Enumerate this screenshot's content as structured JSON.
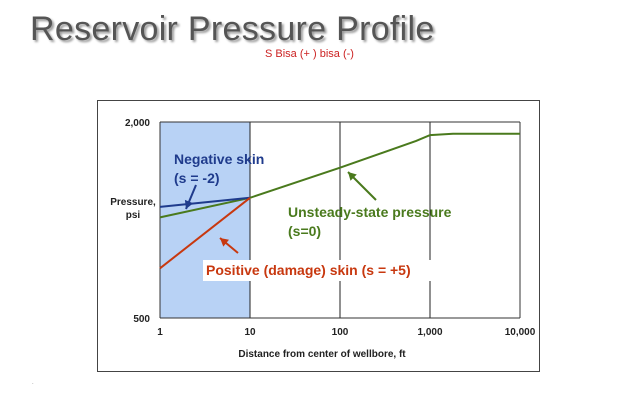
{
  "page": {
    "title": "Reservoir Pressure Profile",
    "note": "S Bisa (+ ) bisa (-)"
  },
  "colors": {
    "shade": "#b8d2f5",
    "negative": "#1f3b8c",
    "unsteady": "#4a7a1d",
    "positive": "#c8380f",
    "axis": "#333333",
    "grid": "#222222"
  },
  "chart_data": {
    "type": "line",
    "title": "",
    "xlabel": "Distance from center of wellbore, ft",
    "ylabel": "Pressure, psi",
    "x_scale": "log",
    "xlim": [
      1,
      10000
    ],
    "ylim": [
      500,
      2000
    ],
    "x_ticks": [
      1,
      10,
      100,
      1000,
      10000
    ],
    "x_tick_labels": [
      "1",
      "10",
      "100",
      "1,000",
      "10,000"
    ],
    "y_ticks": [
      500,
      2000
    ],
    "y_tick_labels": [
      "500",
      "2,000"
    ],
    "grid": "vertical lines at 10, 100, 1,000",
    "shaded_region": {
      "x_from": 1,
      "x_to": 10
    },
    "series": [
      {
        "name": "Unsteady-state pressure",
        "x": [
          1,
          10,
          100,
          700,
          1000,
          1800,
          10000
        ],
        "y": [
          1270,
          1420,
          1650,
          1855,
          1900,
          1910,
          1910
        ]
      },
      {
        "name": "Negative skin",
        "x": [
          1,
          10
        ],
        "y": [
          1350,
          1420
        ]
      },
      {
        "name": "Positive (damage) skin",
        "x": [
          1,
          10
        ],
        "y": [
          880,
          1420
        ]
      }
    ],
    "annotations": [
      {
        "lines": [
          "Negative skin",
          "(s = -2)"
        ],
        "series": "Negative skin",
        "color": "#1f3b8c"
      },
      {
        "lines": [
          "Unsteady-state pressure",
          "(s=0)"
        ],
        "series": "Unsteady-state pressure",
        "color": "#4a7a1d"
      },
      {
        "lines": [
          "Positive (damage) skin (s = +5)"
        ],
        "series": "Positive (damage) skin",
        "color": "#c8380f"
      }
    ]
  }
}
